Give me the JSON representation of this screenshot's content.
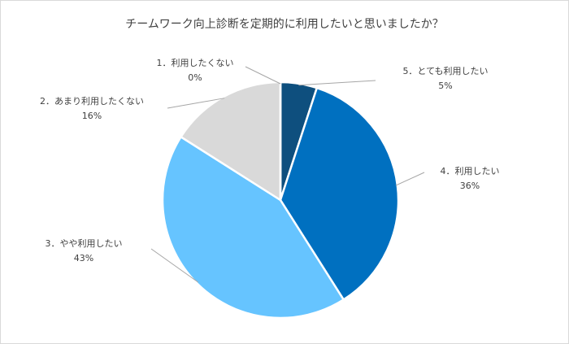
{
  "chart_data": {
    "type": "pie",
    "title": "チームワーク向上診断を定期的に利用したいと思いましたか？",
    "categories": [
      "5．とても利用したい",
      "4．利用したい",
      "3．やや利用したい",
      "2．あまり利用したくない",
      "1．利用したくない"
    ],
    "values": [
      5,
      36,
      43,
      16,
      0
    ],
    "value_labels": [
      "5%",
      "36%",
      "43%",
      "16%",
      "0%"
    ],
    "colors": [
      "#0e4f7e",
      "#0070c0",
      "#66c4ff",
      "#d9d9d9",
      "#a5a5a5"
    ]
  }
}
